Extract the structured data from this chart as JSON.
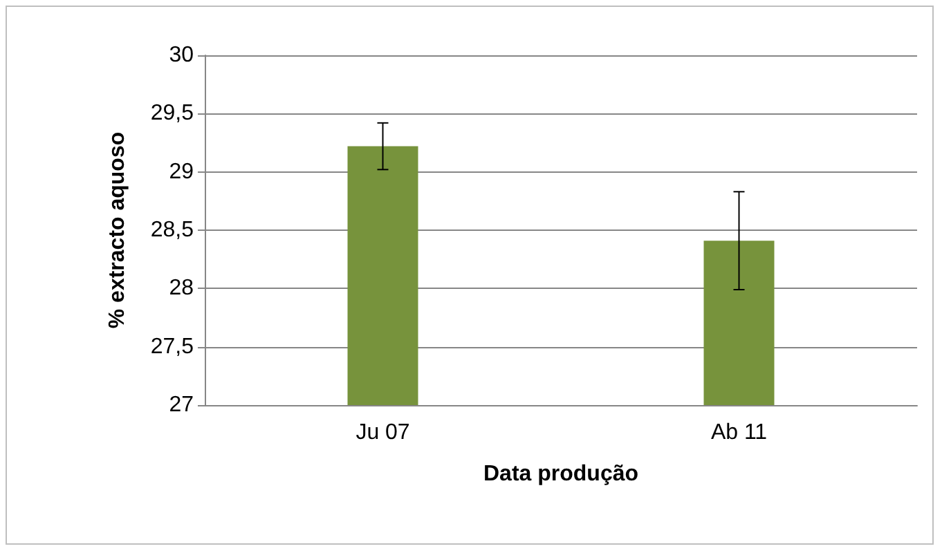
{
  "chart_data": {
    "type": "bar",
    "xlabel": "Data produção",
    "ylabel": "% extracto aquoso",
    "categories": [
      "Ju 07",
      "Ab 11"
    ],
    "values": [
      29.22,
      28.41
    ],
    "errors": [
      0.2,
      0.42
    ],
    "color": "#77933c",
    "ylim": [
      27,
      30
    ],
    "yticks": [
      27,
      {
        "value": 27.5,
        "label": "27,5"
      },
      28,
      {
        "value": 28.5,
        "label": "28,5"
      },
      29,
      {
        "value": 29.5,
        "label": "29,5"
      },
      30
    ],
    "grid": "y"
  }
}
